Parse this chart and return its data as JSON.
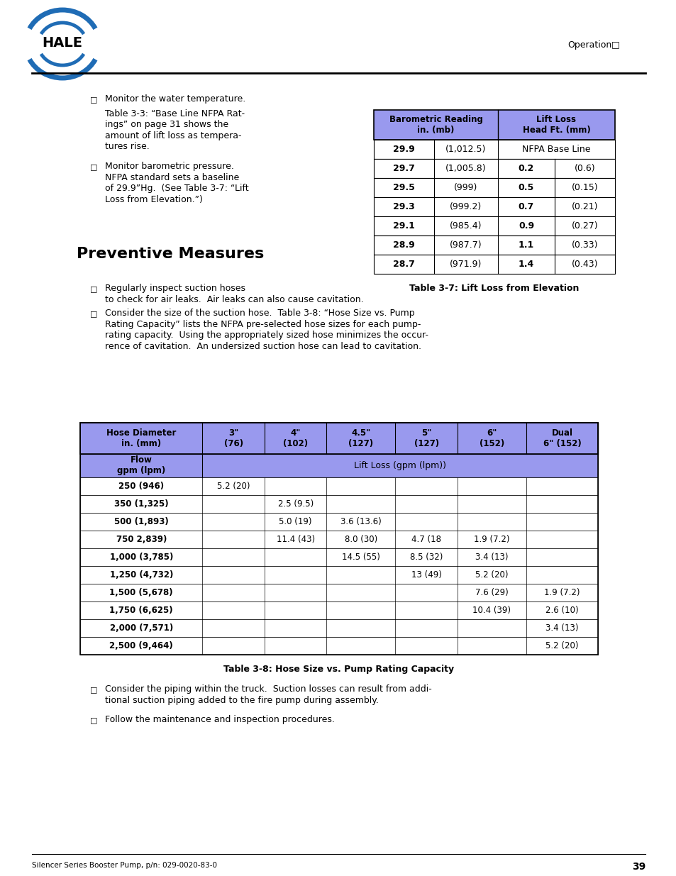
{
  "page_bg": "#ffffff",
  "checkbox_char": "□",
  "bullet1": "Monitor the water temperature.",
  "table37_intro": "Table 3-3: “Base Line NFPA Rat-\nings” on page 31 shows the\namount of lift loss as tempera-\ntures rise.",
  "preventive_title": "Preventive Measures",
  "bullet3": "Regularly inspect suction hoses\nto check for air leaks.  Air leaks can also cause cavitation.",
  "bullet4": "Consider the size of the suction hose.  Table 3-8: “Hose Size vs. Pump\nRating Capacity” lists the NFPA pre-selected hose sizes for each pump-\nrating capacity.  Using the appropriately sized hose minimizes the occur-\nrence of cavitation.  An undersized suction hose can lead to cavitation.",
  "table37_header_bg": "#9999ee",
  "table37_border_color": "#000000",
  "table37_rows": [
    [
      "29.9",
      "(1,012.5)",
      "NFPA Base Line",
      ""
    ],
    [
      "29.7",
      "(1,005.8)",
      "0.2",
      "(0.6)"
    ],
    [
      "29.5",
      "(999)",
      "0.5",
      "(0.15)"
    ],
    [
      "29.3",
      "(999.2)",
      "0.7",
      "(0.21)"
    ],
    [
      "29.1",
      "(985.4)",
      "0.9",
      "(0.27)"
    ],
    [
      "28.9",
      "(987.7)",
      "1.1",
      "(0.33)"
    ],
    [
      "28.7",
      "(971.9)",
      "1.4",
      "(0.43)"
    ]
  ],
  "table37_caption": "Table 3-7: Lift Loss from Elevation",
  "table38_header_bg": "#9999ee",
  "table38_border_color": "#000000",
  "table38_col_headers": [
    [
      "Hose Diameter",
      "in. (mm)"
    ],
    [
      "3\"",
      "(76)"
    ],
    [
      "4\"",
      "(102)"
    ],
    [
      "4.5\"",
      "(127)"
    ],
    [
      "5\"",
      "(127)"
    ],
    [
      "6\"",
      "(152)"
    ],
    [
      "Dual",
      "6\" (152)"
    ]
  ],
  "table38_liftloss_label": "Lift Loss (gpm (lpm))",
  "table38_rows": [
    [
      "250 (946)",
      "5.2 (20)",
      "",
      "",
      "",
      "",
      ""
    ],
    [
      "350 (1,325)",
      "",
      "2.5 (9.5)",
      "",
      "",
      "",
      ""
    ],
    [
      "500 (1,893)",
      "",
      "5.0 (19)",
      "3.6 (13.6)",
      "",
      "",
      ""
    ],
    [
      "750 2,839)",
      "",
      "11.4 (43)",
      "8.0 (30)",
      "4.7 (18",
      "1.9 (7.2)",
      ""
    ],
    [
      "1,000 (3,785)",
      "",
      "",
      "14.5 (55)",
      "8.5 (32)",
      "3.4 (13)",
      ""
    ],
    [
      "1,250 (4,732)",
      "",
      "",
      "",
      "13 (49)",
      "5.2 (20)",
      ""
    ],
    [
      "1,500 (5,678)",
      "",
      "",
      "",
      "",
      "7.6 (29)",
      "1.9 (7.2)"
    ],
    [
      "1,750 (6,625)",
      "",
      "",
      "",
      "",
      "10.4 (39)",
      "2.6 (10)"
    ],
    [
      "2,000 (7,571)",
      "",
      "",
      "",
      "",
      "",
      "3.4 (13)"
    ],
    [
      "2,500 (9,464)",
      "",
      "",
      "",
      "",
      "",
      "5.2 (20)"
    ]
  ],
  "table38_caption": "Table 3-8: Hose Size vs. Pump Rating Capacity",
  "footer_text_left": "Silencer Series Booster Pump, p/n: 029-0020-83-0",
  "footer_page": "39",
  "bullet5": "Consider the piping within the truck.  Suction losses can result from addi-\ntional suction piping added to the fire pump during assembly.",
  "bullet6": "Follow the maintenance and inspection procedures."
}
